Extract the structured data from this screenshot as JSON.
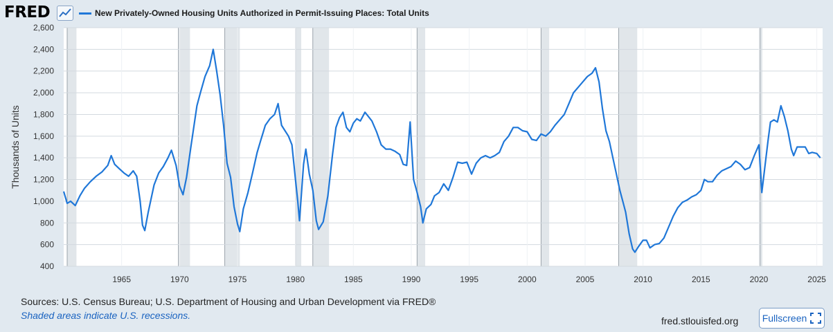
{
  "header": {
    "logo": "FRED",
    "legend_label": "New Privately-Owned Housing Units Authorized in Permit-Issuing Places: Total Units",
    "series_color": "#1f77d8"
  },
  "footer": {
    "source": "Sources: U.S. Census Bureau; U.S. Department of Housing and Urban Development via FRED®",
    "note": "Shaded areas indicate U.S. recessions.",
    "site": "fred.stlouisfed.org",
    "fullscreen_label": "Fullscreen"
  },
  "chart_data": {
    "type": "line",
    "title": "New Privately-Owned Housing Units Authorized in Permit-Issuing Places: Total Units",
    "ylabel": "Thousands of Units",
    "xlabel": "",
    "xlim": [
      1960.0,
      2025.5
    ],
    "ylim": [
      400,
      2600
    ],
    "y_ticks": [
      400,
      600,
      800,
      1000,
      1200,
      1400,
      1600,
      1800,
      2000,
      2200,
      2400,
      2600
    ],
    "y_tick_labels": [
      "400",
      "600",
      "800",
      "1,000",
      "1,200",
      "1,400",
      "1,600",
      "1,800",
      "2,000",
      "2,200",
      "2,400",
      "2,600"
    ],
    "x_ticks": [
      1965,
      1970,
      1975,
      1980,
      1985,
      1990,
      1995,
      2000,
      2005,
      2010,
      2015,
      2020,
      2025
    ],
    "grid": true,
    "recessions": [
      [
        1960.3,
        1961.1
      ],
      [
        1969.9,
        1970.9
      ],
      [
        1973.9,
        1975.2
      ],
      [
        1980.0,
        1980.5
      ],
      [
        1981.5,
        1982.9
      ],
      [
        1990.5,
        1991.2
      ],
      [
        2001.2,
        2001.9
      ],
      [
        2007.9,
        2009.5
      ],
      [
        2020.1,
        2020.3
      ]
    ],
    "recession_color": "#e1e6ea",
    "series": [
      {
        "name": "New Privately-Owned Housing Units Authorized in Permit-Issuing Places: Total Units",
        "color": "#1f77d8",
        "points": [
          [
            1960.0,
            1090
          ],
          [
            1960.3,
            980
          ],
          [
            1960.6,
            1000
          ],
          [
            1961.0,
            960
          ],
          [
            1961.4,
            1050
          ],
          [
            1961.8,
            1120
          ],
          [
            1962.3,
            1180
          ],
          [
            1962.8,
            1230
          ],
          [
            1963.3,
            1270
          ],
          [
            1963.8,
            1330
          ],
          [
            1964.1,
            1420
          ],
          [
            1964.4,
            1340
          ],
          [
            1964.8,
            1300
          ],
          [
            1965.2,
            1260
          ],
          [
            1965.6,
            1230
          ],
          [
            1966.0,
            1280
          ],
          [
            1966.3,
            1230
          ],
          [
            1966.6,
            1000
          ],
          [
            1966.8,
            780
          ],
          [
            1967.0,
            730
          ],
          [
            1967.3,
            900
          ],
          [
            1967.8,
            1150
          ],
          [
            1968.2,
            1260
          ],
          [
            1968.6,
            1320
          ],
          [
            1969.0,
            1400
          ],
          [
            1969.3,
            1470
          ],
          [
            1969.7,
            1330
          ],
          [
            1970.0,
            1140
          ],
          [
            1970.3,
            1060
          ],
          [
            1970.6,
            1220
          ],
          [
            1971.0,
            1520
          ],
          [
            1971.5,
            1880
          ],
          [
            1971.8,
            2000
          ],
          [
            1972.2,
            2150
          ],
          [
            1972.6,
            2250
          ],
          [
            1972.9,
            2400
          ],
          [
            1973.2,
            2200
          ],
          [
            1973.5,
            1980
          ],
          [
            1973.8,
            1700
          ],
          [
            1974.1,
            1350
          ],
          [
            1974.4,
            1220
          ],
          [
            1974.7,
            950
          ],
          [
            1975.0,
            790
          ],
          [
            1975.2,
            720
          ],
          [
            1975.5,
            930
          ],
          [
            1975.9,
            1080
          ],
          [
            1976.3,
            1260
          ],
          [
            1976.7,
            1450
          ],
          [
            1977.0,
            1560
          ],
          [
            1977.4,
            1700
          ],
          [
            1977.8,
            1760
          ],
          [
            1978.2,
            1800
          ],
          [
            1978.5,
            1900
          ],
          [
            1978.8,
            1700
          ],
          [
            1979.1,
            1650
          ],
          [
            1979.4,
            1600
          ],
          [
            1979.7,
            1520
          ],
          [
            1980.0,
            1200
          ],
          [
            1980.2,
            1000
          ],
          [
            1980.35,
            820
          ],
          [
            1980.7,
            1340
          ],
          [
            1980.9,
            1480
          ],
          [
            1981.2,
            1250
          ],
          [
            1981.5,
            1100
          ],
          [
            1981.8,
            820
          ],
          [
            1982.0,
            740
          ],
          [
            1982.4,
            810
          ],
          [
            1982.8,
            1050
          ],
          [
            1983.2,
            1430
          ],
          [
            1983.5,
            1680
          ],
          [
            1983.8,
            1770
          ],
          [
            1984.1,
            1820
          ],
          [
            1984.4,
            1680
          ],
          [
            1984.7,
            1640
          ],
          [
            1985.0,
            1720
          ],
          [
            1985.3,
            1760
          ],
          [
            1985.6,
            1740
          ],
          [
            1986.0,
            1820
          ],
          [
            1986.3,
            1780
          ],
          [
            1986.6,
            1740
          ],
          [
            1987.0,
            1640
          ],
          [
            1987.4,
            1520
          ],
          [
            1987.8,
            1480
          ],
          [
            1988.2,
            1480
          ],
          [
            1988.6,
            1460
          ],
          [
            1989.0,
            1430
          ],
          [
            1989.3,
            1340
          ],
          [
            1989.6,
            1330
          ],
          [
            1989.9,
            1730
          ],
          [
            1990.2,
            1200
          ],
          [
            1990.5,
            1080
          ],
          [
            1990.8,
            950
          ],
          [
            1991.0,
            800
          ],
          [
            1991.3,
            930
          ],
          [
            1991.7,
            970
          ],
          [
            1992.0,
            1050
          ],
          [
            1992.4,
            1080
          ],
          [
            1992.8,
            1160
          ],
          [
            1993.2,
            1100
          ],
          [
            1993.6,
            1220
          ],
          [
            1994.0,
            1360
          ],
          [
            1994.4,
            1350
          ],
          [
            1994.8,
            1360
          ],
          [
            1995.2,
            1250
          ],
          [
            1995.6,
            1350
          ],
          [
            1996.0,
            1400
          ],
          [
            1996.4,
            1420
          ],
          [
            1996.8,
            1400
          ],
          [
            1997.2,
            1420
          ],
          [
            1997.6,
            1450
          ],
          [
            1998.0,
            1550
          ],
          [
            1998.4,
            1600
          ],
          [
            1998.8,
            1680
          ],
          [
            1999.2,
            1680
          ],
          [
            1999.6,
            1650
          ],
          [
            2000.0,
            1640
          ],
          [
            2000.4,
            1570
          ],
          [
            2000.8,
            1560
          ],
          [
            2001.2,
            1620
          ],
          [
            2001.6,
            1600
          ],
          [
            2002.0,
            1640
          ],
          [
            2002.4,
            1700
          ],
          [
            2002.8,
            1750
          ],
          [
            2003.2,
            1800
          ],
          [
            2003.6,
            1900
          ],
          [
            2004.0,
            2000
          ],
          [
            2004.4,
            2050
          ],
          [
            2004.8,
            2100
          ],
          [
            2005.2,
            2150
          ],
          [
            2005.6,
            2180
          ],
          [
            2005.9,
            2230
          ],
          [
            2006.2,
            2100
          ],
          [
            2006.5,
            1850
          ],
          [
            2006.8,
            1650
          ],
          [
            2007.1,
            1550
          ],
          [
            2007.4,
            1400
          ],
          [
            2007.7,
            1250
          ],
          [
            2008.0,
            1100
          ],
          [
            2008.3,
            980
          ],
          [
            2008.5,
            900
          ],
          [
            2008.8,
            700
          ],
          [
            2009.1,
            560
          ],
          [
            2009.3,
            530
          ],
          [
            2009.6,
            580
          ],
          [
            2010.0,
            640
          ],
          [
            2010.3,
            640
          ],
          [
            2010.6,
            570
          ],
          [
            2011.0,
            600
          ],
          [
            2011.4,
            610
          ],
          [
            2011.8,
            660
          ],
          [
            2012.2,
            760
          ],
          [
            2012.6,
            860
          ],
          [
            2013.0,
            940
          ],
          [
            2013.4,
            990
          ],
          [
            2013.8,
            1010
          ],
          [
            2014.2,
            1040
          ],
          [
            2014.6,
            1060
          ],
          [
            2015.0,
            1100
          ],
          [
            2015.3,
            1200
          ],
          [
            2015.6,
            1180
          ],
          [
            2016.0,
            1180
          ],
          [
            2016.4,
            1240
          ],
          [
            2016.8,
            1280
          ],
          [
            2017.2,
            1300
          ],
          [
            2017.6,
            1320
          ],
          [
            2018.0,
            1370
          ],
          [
            2018.4,
            1340
          ],
          [
            2018.8,
            1290
          ],
          [
            2019.2,
            1310
          ],
          [
            2019.6,
            1420
          ],
          [
            2020.0,
            1520
          ],
          [
            2020.25,
            1080
          ],
          [
            2020.5,
            1300
          ],
          [
            2020.8,
            1570
          ],
          [
            2021.0,
            1730
          ],
          [
            2021.3,
            1750
          ],
          [
            2021.6,
            1730
          ],
          [
            2021.9,
            1880
          ],
          [
            2022.2,
            1780
          ],
          [
            2022.5,
            1650
          ],
          [
            2022.8,
            1480
          ],
          [
            2023.0,
            1420
          ],
          [
            2023.3,
            1500
          ],
          [
            2023.6,
            1500
          ],
          [
            2024.0,
            1500
          ],
          [
            2024.3,
            1440
          ],
          [
            2024.6,
            1450
          ],
          [
            2025.0,
            1440
          ],
          [
            2025.3,
            1400
          ]
        ]
      }
    ]
  }
}
